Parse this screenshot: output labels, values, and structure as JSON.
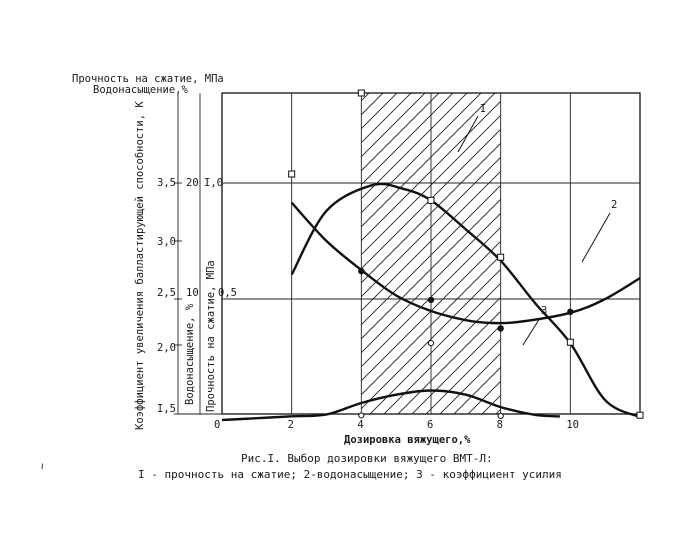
{
  "page": {
    "margin_mark": "~",
    "caption_line1": "Рис.I. Выбор дозировки вяжущего ВМТ-Л:",
    "caption_line2": "I - прочность на сжатие; 2-водонасыщение; 3 - коэффициент  усилия"
  },
  "chart_data": {
    "type": "line",
    "x": {
      "label": "Дозировка вяжущего,%",
      "ticks": [
        "0",
        "2",
        "4",
        "6",
        "8",
        "10"
      ],
      "range": [
        0,
        12
      ]
    },
    "left_axes": [
      {
        "label": "Коэффициент увеличения ballastирующей",
        "label_full": "Коэффициент увеличения балластирующей способности, К",
        "ticks": [
          {
            "value": 1.5,
            "text": "I,5"
          },
          {
            "value": 2.0,
            "text": "2,0"
          },
          {
            "value": 2.5,
            "text": "2,5"
          },
          {
            "value": 3.0,
            "text": "3,0"
          },
          {
            "value": 3.5,
            "text": "3,5"
          }
        ],
        "range": [
          1.5,
          3.5
        ]
      },
      {
        "label": "Водонасыщение, %",
        "ticks": [
          {
            "value": 10,
            "text": "10"
          },
          {
            "value": 20,
            "text": "20"
          }
        ]
      },
      {
        "label": "Прочность на сжатие, МПа",
        "ticks": [
          {
            "value": 0.5,
            "text": "0,5"
          },
          {
            "value": 1.0,
            "text": "I,0"
          }
        ]
      }
    ],
    "top_labels": {
      "strength": "Прочность на сжатие, МПа",
      "water": "Водонасыщение,%"
    },
    "hatched_region": {
      "x_from": 4,
      "x_to": 8
    },
    "series": [
      {
        "name": "I",
        "points": [
          [
            2,
            2.71
          ],
          [
            3,
            3.26
          ],
          [
            4.3,
            3.48
          ],
          [
            5.2,
            3.45
          ],
          [
            6,
            3.35
          ],
          [
            7,
            3.1
          ],
          [
            8,
            2.83
          ],
          [
            9,
            2.45
          ],
          [
            10,
            2.02
          ],
          [
            11,
            1.6
          ],
          [
            12,
            1.25
          ]
        ],
        "markers": [
          [
            2,
            3.54
          ],
          [
            4,
            3.9
          ],
          [
            6,
            3.35
          ],
          [
            8,
            2.86
          ],
          [
            10,
            2.03
          ],
          [
            12,
            1.4
          ]
        ]
      },
      {
        "name": "2",
        "points": [
          [
            2,
            3.33
          ],
          [
            3,
            3.0
          ],
          [
            4,
            2.75
          ],
          [
            5,
            2.53
          ],
          [
            6,
            2.37
          ],
          [
            7,
            2.27
          ],
          [
            7.7,
            2.24
          ],
          [
            8.5,
            2.25
          ],
          [
            10,
            2.35
          ],
          [
            11,
            2.5
          ],
          [
            12,
            2.68
          ]
        ],
        "markers": [
          [
            4,
            2.74
          ],
          [
            6,
            2.49
          ],
          [
            8,
            2.18
          ],
          [
            10,
            2.36
          ]
        ]
      },
      {
        "name": "3",
        "points": [
          [
            0,
            1.0
          ],
          [
            1,
            1.15
          ],
          [
            2,
            1.31
          ],
          [
            3,
            1.46
          ],
          [
            4,
            1.58
          ],
          [
            5,
            1.64
          ],
          [
            6,
            1.67
          ],
          [
            7,
            1.64
          ],
          [
            8,
            1.55
          ],
          [
            9,
            1.42
          ],
          [
            9.7,
            1.3
          ]
        ],
        "markers": [
          [
            4,
            1.38
          ],
          [
            6,
            2.02
          ],
          [
            8,
            1.34
          ]
        ]
      }
    ]
  }
}
